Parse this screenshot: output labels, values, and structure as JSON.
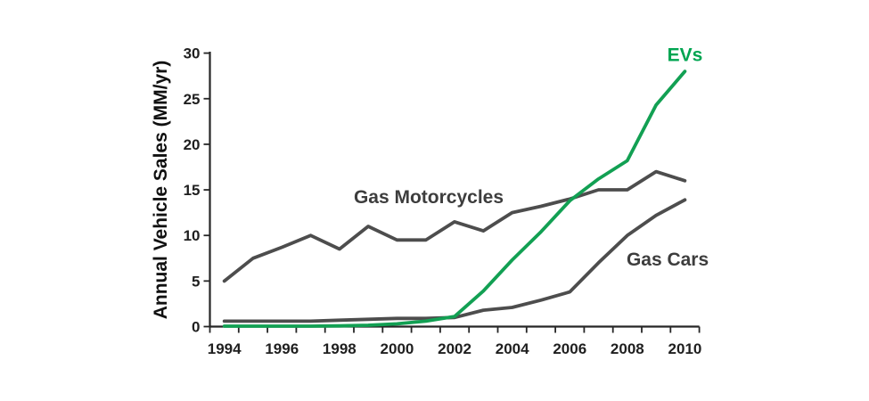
{
  "page": {
    "background_color": "#ffffff"
  },
  "chart_data": {
    "type": "line",
    "title": "",
    "xlabel": "",
    "ylabel": "Annual Vehicle Sales (MM/yr)",
    "x": [
      1994,
      1995,
      1996,
      1997,
      1998,
      1999,
      2000,
      2001,
      2002,
      2003,
      2004,
      2005,
      2006,
      2007,
      2008,
      2009,
      2010
    ],
    "x_tick_labels": [
      "1994",
      "1996",
      "1998",
      "2000",
      "2002",
      "2004",
      "2006",
      "2008",
      "2010"
    ],
    "yticks": [
      0,
      5,
      10,
      15,
      20,
      25,
      30
    ],
    "ylim": [
      0,
      30
    ],
    "xlim": [
      1994,
      2010
    ],
    "grid": false,
    "legend_position": "inline-annotations",
    "axis_color": "#262626",
    "tick_label_color": "#1f1f1f",
    "series": [
      {
        "name": "Gas Motorcycles",
        "color": "#4d4d4d",
        "values": [
          5,
          7.5,
          8.7,
          10,
          8.5,
          11,
          9.5,
          9.5,
          11.5,
          10.5,
          12.5,
          13.2,
          14,
          15,
          15,
          17,
          16
        ]
      },
      {
        "name": "Gas Cars",
        "color": "#4d4d4d",
        "values": [
          0.6,
          0.6,
          0.6,
          0.6,
          0.7,
          0.8,
          0.9,
          0.9,
          1.0,
          1.8,
          2.1,
          2.9,
          3.8,
          7,
          10,
          12.2,
          13.9
        ]
      },
      {
        "name": "EVs",
        "color": "#12a053",
        "values": [
          0.05,
          0.05,
          0.05,
          0.05,
          0.08,
          0.15,
          0.3,
          0.6,
          1.1,
          3.9,
          7.3,
          10.4,
          13.8,
          16.2,
          18.2,
          24.3,
          28
        ]
      }
    ],
    "annotations": [
      {
        "text": "Gas Motorcycles",
        "x": 2001.1,
        "y": 14.2,
        "color": "#3d3d3d"
      },
      {
        "text": "Gas Cars",
        "x": 2009.4,
        "y": 7.4,
        "color": "#3d3d3d"
      },
      {
        "text": "EVs",
        "x": 2010.0,
        "y": 29.8,
        "color": "#00a551"
      }
    ]
  }
}
